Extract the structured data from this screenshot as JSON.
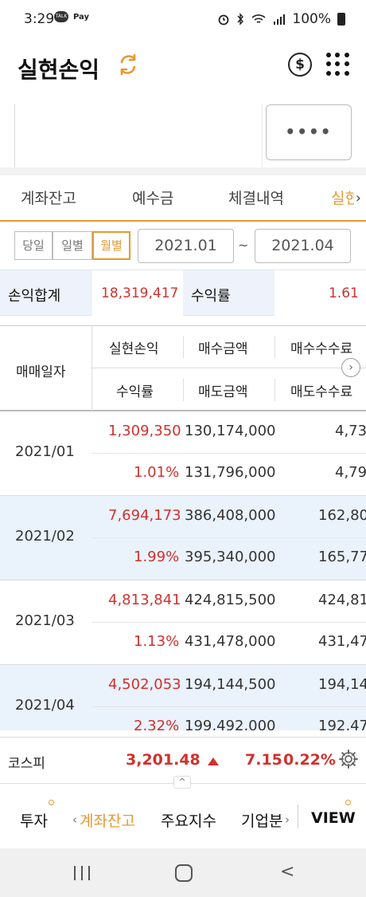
{
  "status_bar": {
    "time": "3:29",
    "left_icons": [
      "TALK",
      "Pay"
    ],
    "battery": "100%"
  },
  "header": {
    "title": "실현손익"
  },
  "account": {
    "password_mask": "••••"
  },
  "tabs": [
    {
      "label": "계좌잔고"
    },
    {
      "label": "예수금"
    },
    {
      "label": "체결내역"
    },
    {
      "label": "실현"
    }
  ],
  "filter": {
    "segments": [
      "당일",
      "일별",
      "월별"
    ],
    "active_segment": "월별",
    "date_from": "2021.01",
    "tilde": "~",
    "date_to": "2021.04"
  },
  "summary": {
    "pl_label": "손익합계",
    "pl_value": "18,319,417",
    "rate_label": "수익률",
    "rate_value": "1.61"
  },
  "table": {
    "headers": {
      "date": "매매일자",
      "realized": "실현손익",
      "buy_amount": "매수금액",
      "buy_fee": "매수수수료",
      "return_rate": "수익률",
      "sell_amount": "매도금액",
      "sell_fee": "매도수수료"
    },
    "rows": [
      {
        "date": "2021/01",
        "realized": "1,309,350",
        "buy_amount": "130,174,000",
        "buy_fee": "4,73",
        "rate": "1.01%",
        "sell_amount": "131,796,000",
        "sell_fee": "4,79"
      },
      {
        "date": "2021/02",
        "realized": "7,694,173",
        "buy_amount": "386,408,000",
        "buy_fee": "162,80",
        "rate": "1.99%",
        "sell_amount": "395,340,000",
        "sell_fee": "165,77"
      },
      {
        "date": "2021/03",
        "realized": "4,813,841",
        "buy_amount": "424,815,500",
        "buy_fee": "424,81",
        "rate": "1.13%",
        "sell_amount": "431,478,000",
        "sell_fee": "431,47"
      },
      {
        "date": "2021/04",
        "realized": "4,502,053",
        "buy_amount": "194,144,500",
        "buy_fee": "194,14",
        "rate": "2.32%",
        "sell_amount": "199,492,000",
        "sell_fee": "192,47"
      }
    ]
  },
  "index_bar": {
    "name": "코스피",
    "value": "3,201.48",
    "change": "7.15",
    "change_pct": "0.22%"
  },
  "bottom_menu": {
    "items": [
      "투자",
      "계좌잔고",
      "주요지수",
      "기업분",
      "VIEW"
    ],
    "active": "계좌잔고"
  },
  "colors": {
    "accent": "#e59a2f",
    "up_red": "#d0312d",
    "row_shade": "#eaf2fb"
  }
}
